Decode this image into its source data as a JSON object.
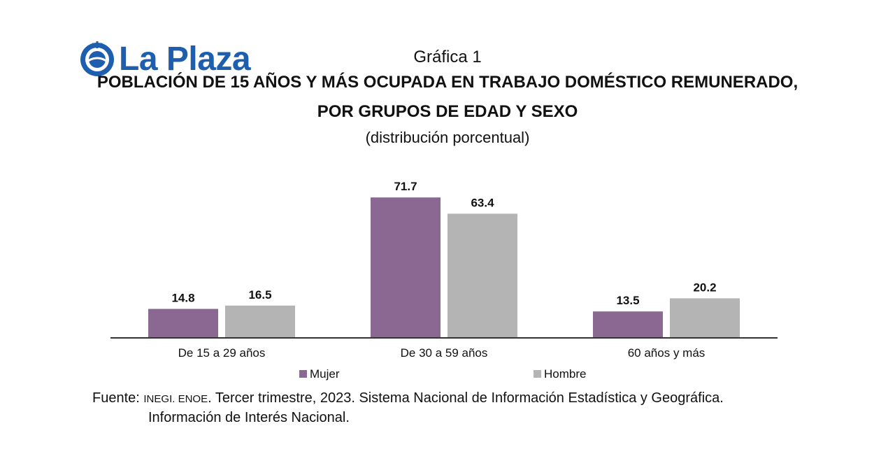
{
  "logo": {
    "text": "La Plaza"
  },
  "header": {
    "subtitle": "Gráfica 1",
    "title_line1": "POBLACIÓN DE 15 AÑOS Y MÁS OCUPADA EN TRABAJO DOMÉSTICO REMUNERADO,",
    "title_line2": "POR GRUPOS DE EDAD Y SEXO",
    "unit": "(distribución porcentual)"
  },
  "chart_data": {
    "type": "bar",
    "categories": [
      "De 15 a 29 años",
      "De 30 a 59 años",
      "60 años y más"
    ],
    "series": [
      {
        "name": "Mujer",
        "values": [
          14.8,
          71.7,
          13.5
        ],
        "color": "#8b6892"
      },
      {
        "name": "Hombre",
        "values": [
          16.5,
          63.4,
          20.2
        ],
        "color": "#b4b4b4"
      }
    ],
    "legend": "bottom",
    "grid": false
  },
  "source": {
    "prefix": "Fuente: ",
    "org": "INEGI. ENOE",
    "rest": ". Tercer trimestre, 2023. Sistema Nacional de Información Estadística y Geográfica.",
    "line2": "Información de Interés Nacional."
  }
}
